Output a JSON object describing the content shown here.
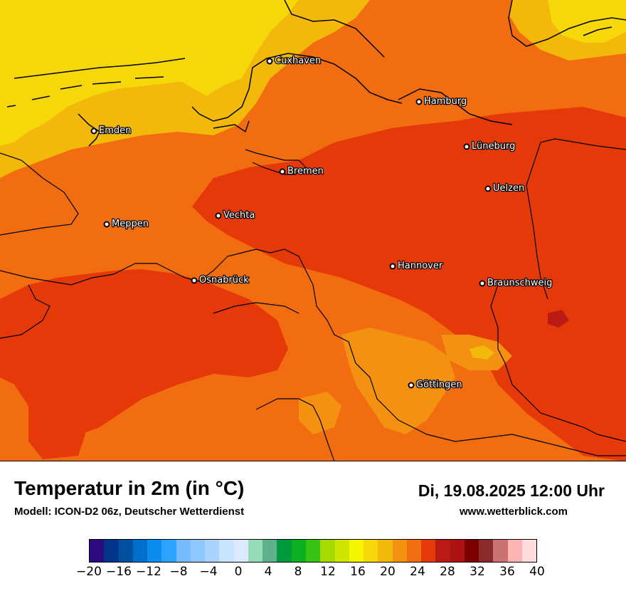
{
  "map": {
    "region": "Norddeutschland",
    "sea_color": "#f5d70a",
    "cities": [
      {
        "name": "Cuxhaven"
      },
      {
        "name": "Hamburg"
      },
      {
        "name": "Emden"
      },
      {
        "name": "Lüneburg"
      },
      {
        "name": "Bremen"
      },
      {
        "name": "Uelzen"
      },
      {
        "name": "Vechta"
      },
      {
        "name": "Meppen"
      },
      {
        "name": "Hannover"
      },
      {
        "name": "Osnabrück"
      },
      {
        "name": "Braunschweig"
      },
      {
        "name": "Göttingen"
      }
    ]
  },
  "header": {
    "title": "Temperatur in 2m (in °C)",
    "subtitle": "Modell: ICON-D2 06z, Deutscher Wetterdienst",
    "datetime": "Di, 19.08.2025 12:00 Uhr",
    "website": "www.wetterblick.com"
  },
  "legend": {
    "colors": [
      "#2b0a7f",
      "#00358a",
      "#0050a0",
      "#006fcc",
      "#0b8cf0",
      "#2ba3ff",
      "#76bbff",
      "#8fc7ff",
      "#aad4ff",
      "#c8e3ff",
      "#dbeaff",
      "#96dbb9",
      "#5fb08c",
      "#009a3c",
      "#0ab220",
      "#37c313",
      "#a5db00",
      "#cfe600",
      "#f5f500",
      "#f5d70a",
      "#f3b90a",
      "#f59111",
      "#f26d10",
      "#e5390a",
      "#bb1a12",
      "#ad1212",
      "#7d0000",
      "#8c2b2b",
      "#cd7272",
      "#ffb4b4",
      "#ffdcdc"
    ],
    "tick_labels": [
      "−20",
      "−16",
      "−12",
      "−8",
      "−4",
      "0",
      "4",
      "8",
      "12",
      "16",
      "20",
      "24",
      "28",
      "32",
      "36",
      "40"
    ],
    "min": -20,
    "max": 40,
    "step": 2
  }
}
